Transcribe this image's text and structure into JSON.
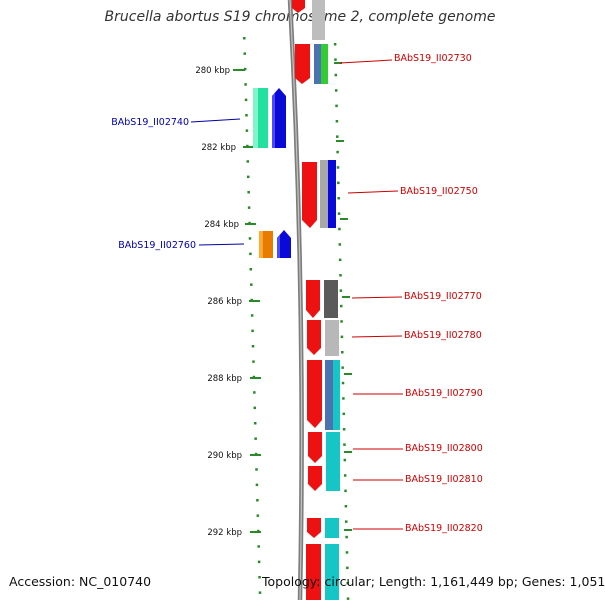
{
  "title": "Brucella abortus S19 chromosome 2, complete genome",
  "footer": {
    "accession": "Accession: NC_010740",
    "topology": "Topology: circular; Length: 1,161,449 bp; Genes: 1,051"
  },
  "colors": {
    "backbone": "#8c8c8c",
    "tick": "#2a8a2a",
    "forward_label": "#cc0000",
    "reverse_label": "#0000aa"
  },
  "ticks": [
    {
      "label": "280 kbp",
      "kbp": 280
    },
    {
      "label": "282 kbp",
      "kbp": 282
    },
    {
      "label": "284 kbp",
      "kbp": 284
    },
    {
      "label": "286 kbp",
      "kbp": 286
    },
    {
      "label": "288 kbp",
      "kbp": 288
    },
    {
      "label": "290 kbp",
      "kbp": 290
    },
    {
      "label": "292 kbp",
      "kbp": 292
    }
  ],
  "gene_labels": [
    {
      "text": "BAbS19_II02730",
      "strand": "forward"
    },
    {
      "text": "BAbS19_II02740",
      "strand": "reverse"
    },
    {
      "text": "BAbS19_II02750",
      "strand": "forward"
    },
    {
      "text": "BAbS19_II02760",
      "strand": "reverse"
    },
    {
      "text": "BAbS19_II02770",
      "strand": "forward"
    },
    {
      "text": "BAbS19_II02780",
      "strand": "forward"
    },
    {
      "text": "BAbS19_II02790",
      "strand": "forward"
    },
    {
      "text": "BAbS19_II02800",
      "strand": "forward"
    },
    {
      "text": "BAbS19_II02810",
      "strand": "forward"
    },
    {
      "text": "BAbS19_II02820",
      "strand": "forward"
    }
  ]
}
